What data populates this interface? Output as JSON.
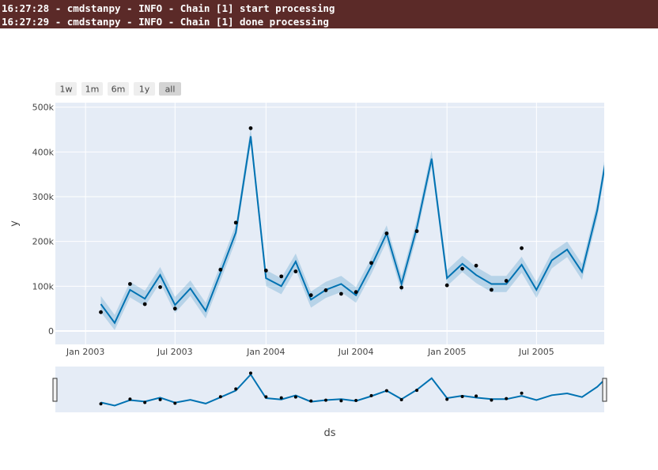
{
  "log_lines": [
    "16:27:28 - cmdstanpy - INFO - Chain [1] start processing",
    "16:27:29 - cmdstanpy - INFO - Chain [1] done processing"
  ],
  "range_buttons": [
    "1w",
    "1m",
    "6m",
    "1y",
    "all"
  ],
  "active_range_button": "all",
  "chart_data": {
    "type": "line",
    "xlabel": "ds",
    "ylabel": "y",
    "x_range": [
      "2002-11-01",
      "2005-11-15"
    ],
    "ylim": [
      -30000,
      510000
    ],
    "x_ticks": [
      {
        "date": "2003-01-01",
        "label": "Jan 2003"
      },
      {
        "date": "2003-07-01",
        "label": "Jul 2003"
      },
      {
        "date": "2004-01-01",
        "label": "Jan 2004"
      },
      {
        "date": "2004-07-01",
        "label": "Jul 2004"
      },
      {
        "date": "2005-01-01",
        "label": "Jan 2005"
      },
      {
        "date": "2005-07-01",
        "label": "Jul 2005"
      }
    ],
    "y_ticks": [
      {
        "value": 0,
        "label": "0"
      },
      {
        "value": 100000,
        "label": "100k"
      },
      {
        "value": 200000,
        "label": "200k"
      },
      {
        "value": 300000,
        "label": "300k"
      },
      {
        "value": 400000,
        "label": "400k"
      },
      {
        "value": 500000,
        "label": "500k"
      }
    ],
    "grid": true,
    "colors": {
      "forecast": "#0072b2",
      "band": "#0072b2",
      "actual": "#000000",
      "plot_bg": "#e5ecf6"
    },
    "forecast": {
      "x": [
        "2003-02-01",
        "2003-03-01",
        "2003-04-01",
        "2003-05-01",
        "2003-06-01",
        "2003-07-01",
        "2003-08-01",
        "2003-09-01",
        "2003-10-01",
        "2003-11-01",
        "2003-12-01",
        "2004-01-01",
        "2004-02-01",
        "2004-03-01",
        "2004-04-01",
        "2004-05-01",
        "2004-06-01",
        "2004-07-01",
        "2004-08-01",
        "2004-09-01",
        "2004-10-01",
        "2004-11-01",
        "2004-12-01",
        "2005-01-01",
        "2005-02-01",
        "2005-03-01",
        "2005-04-01",
        "2005-05-01",
        "2005-06-01",
        "2005-07-01",
        "2005-08-01",
        "2005-09-01",
        "2005-10-01",
        "2005-11-01",
        "2005-12-01"
      ],
      "yhat": [
        60000,
        18000,
        92000,
        72000,
        125000,
        58000,
        95000,
        45000,
        130000,
        220000,
        435000,
        118000,
        100000,
        155000,
        70000,
        92000,
        105000,
        80000,
        145000,
        218000,
        105000,
        230000,
        385000,
        118000,
        150000,
        125000,
        105000,
        105000,
        148000,
        92000,
        158000,
        182000,
        132000,
        270000,
        465000
      ],
      "yhat_lower": [
        42000,
        2000,
        75000,
        55000,
        108000,
        40000,
        78000,
        28000,
        112000,
        202000,
        418000,
        100000,
        82000,
        137000,
        52000,
        74000,
        87000,
        63000,
        127000,
        200000,
        87000,
        212000,
        368000,
        100000,
        132000,
        107000,
        87000,
        87000,
        130000,
        74000,
        140000,
        165000,
        114000,
        252000,
        447000
      ],
      "yhat_upper": [
        78000,
        36000,
        110000,
        90000,
        143000,
        76000,
        113000,
        63000,
        148000,
        238000,
        453000,
        136000,
        118000,
        173000,
        88000,
        110000,
        123000,
        98000,
        163000,
        236000,
        123000,
        248000,
        403000,
        136000,
        168000,
        143000,
        123000,
        123000,
        166000,
        110000,
        176000,
        200000,
        150000,
        288000,
        483000
      ]
    },
    "actual": {
      "x": [
        "2003-02-01",
        "2003-04-01",
        "2003-05-01",
        "2003-06-01",
        "2003-07-01",
        "2003-10-01",
        "2003-11-01",
        "2003-12-01",
        "2004-01-01",
        "2004-02-01",
        "2004-03-01",
        "2004-04-01",
        "2004-05-01",
        "2004-06-01",
        "2004-07-01",
        "2004-08-01",
        "2004-09-01",
        "2004-10-01",
        "2004-11-01",
        "2005-01-01",
        "2005-02-01",
        "2005-03-01",
        "2005-04-01",
        "2005-05-01",
        "2005-06-01"
      ],
      "y": [
        42000,
        105000,
        60000,
        98000,
        50000,
        137000,
        242000,
        453000,
        135000,
        122000,
        133000,
        80000,
        91000,
        83000,
        87000,
        152000,
        218000,
        97000,
        223000,
        102000,
        139000,
        146000,
        92000,
        112000,
        185000
      ]
    }
  }
}
